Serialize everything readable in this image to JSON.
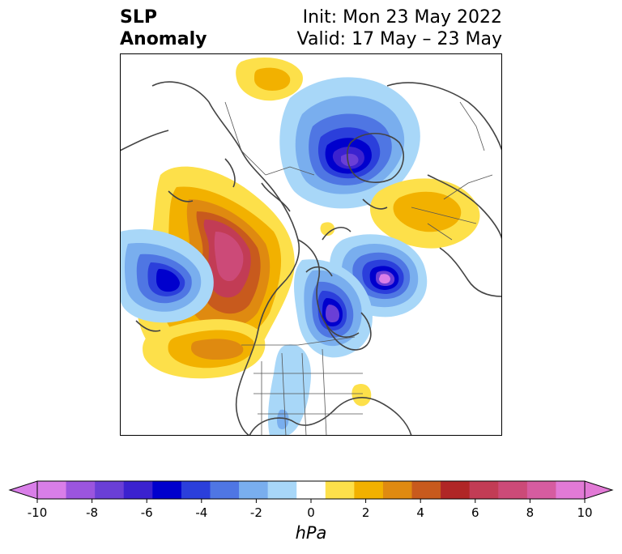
{
  "title": {
    "variable_line1": "SLP",
    "variable_line2": "Anomaly",
    "init": "Init: Mon 23 May 2022",
    "valid": "Valid: 17 May – 23 May"
  },
  "colorbar": {
    "units": "hPa",
    "tick_labels": [
      "-10",
      "-8",
      "-6",
      "-4",
      "-2",
      "0",
      "2",
      "4",
      "6",
      "8",
      "10"
    ],
    "levels": [
      -10,
      -9,
      -8,
      -7,
      -6,
      -5,
      -4,
      -3,
      -2,
      -1,
      1,
      2,
      3,
      4,
      5,
      6,
      7,
      8,
      9,
      10
    ],
    "colors": [
      "#d97ee8",
      "#9b55de",
      "#6a3fd6",
      "#3b22cf",
      "#0000cd",
      "#2b3fdb",
      "#4f76e3",
      "#79aeee",
      "#a8d7f8",
      "#ffffff",
      "#fde04a",
      "#f2b100",
      "#df8a10",
      "#c85a1d",
      "#b02626",
      "#c23c55",
      "#cc4a78",
      "#d65ca0",
      "#e27ad6"
    ],
    "extend": "both"
  },
  "map": {
    "projection": "polar-stereographic",
    "region": "North America / Northern Hemisphere",
    "colors": {
      "coast": "#444444",
      "frame": "#000000"
    }
  }
}
